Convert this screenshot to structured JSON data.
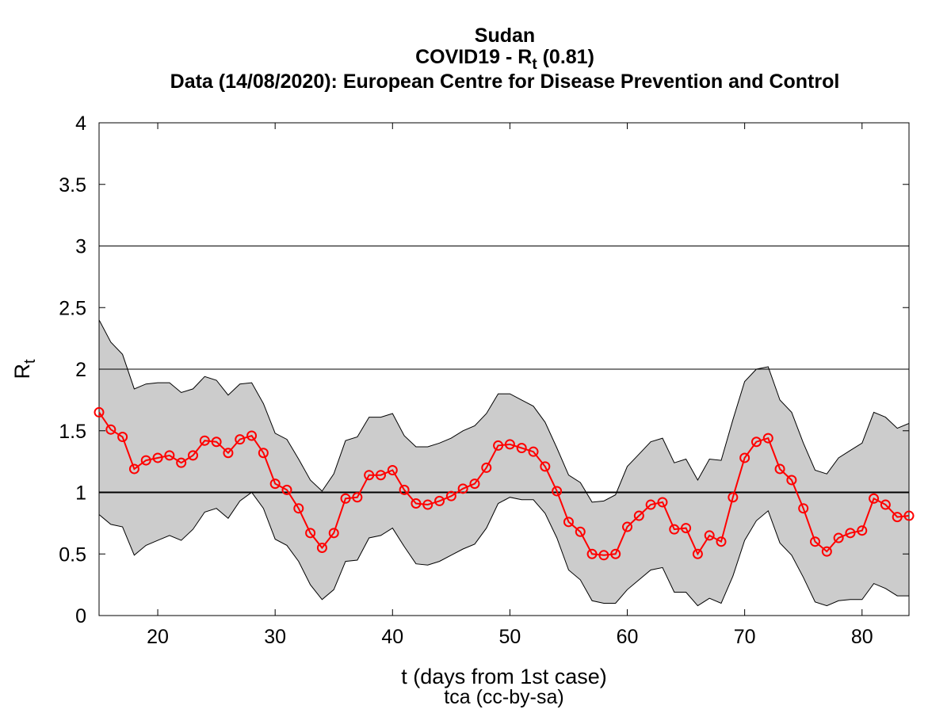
{
  "chart_data": {
    "type": "line",
    "title_country": "Sudan",
    "title_main_prefix": "COVID19 - R",
    "title_main_sub": "t",
    "title_main_suffix": " (0.81)",
    "title_source": "Data (14/08/2020): European Centre for Disease Prevention and Control",
    "xlabel": "t (days from 1st case)",
    "ylabel_main": "R",
    "ylabel_sub": "t",
    "credit": "tca (cc-by-sa)",
    "xlim": [
      15,
      84
    ],
    "ylim": [
      0,
      4
    ],
    "x_ticks": [
      20,
      30,
      40,
      50,
      60,
      70,
      80
    ],
    "y_ticks": [
      0,
      0.5,
      1,
      1.5,
      2,
      2.5,
      3,
      3.5,
      4
    ],
    "y_tick_labels": [
      "0",
      "0.5",
      "1",
      "1.5",
      "2",
      "2.5",
      "3",
      "3.5",
      "4"
    ],
    "reference_lines": [
      1,
      2,
      3
    ],
    "colors": {
      "line": "#ff0000",
      "band": "#cccccc",
      "band_edge": "#000000"
    },
    "series": [
      {
        "x": [
          15,
          16,
          17,
          18,
          19,
          20,
          21,
          22,
          23,
          24,
          25,
          26,
          27,
          28,
          29,
          30,
          31,
          32,
          33,
          34,
          35,
          36,
          37,
          38,
          39,
          40,
          41,
          42,
          43,
          44,
          45,
          46,
          47,
          48,
          49,
          50,
          51,
          52,
          53,
          54,
          55,
          56,
          57,
          58,
          59,
          60,
          61,
          62,
          63,
          64,
          65,
          66,
          67,
          68,
          69,
          70,
          71,
          72,
          73,
          74,
          75,
          76,
          77,
          78,
          79,
          80,
          81,
          82,
          83,
          84
        ],
        "values": [
          1.65,
          1.51,
          1.45,
          1.19,
          1.26,
          1.28,
          1.3,
          1.24,
          1.3,
          1.42,
          1.41,
          1.32,
          1.43,
          1.46,
          1.32,
          1.07,
          1.02,
          0.87,
          0.67,
          0.55,
          0.67,
          0.95,
          0.96,
          1.14,
          1.14,
          1.18,
          1.02,
          0.91,
          0.9,
          0.93,
          0.97,
          1.03,
          1.07,
          1.2,
          1.38,
          1.39,
          1.36,
          1.33,
          1.21,
          1.01,
          0.76,
          0.68,
          0.5,
          0.49,
          0.5,
          0.72,
          0.81,
          0.9,
          0.92,
          0.7,
          0.71,
          0.5,
          0.65,
          0.6,
          0.96,
          1.28,
          1.41,
          1.44,
          1.19,
          1.1,
          0.87,
          0.6,
          0.52,
          0.63,
          0.67,
          0.69,
          0.95,
          0.9,
          0.8,
          0.81
        ]
      }
    ],
    "band_upper": [
      2.4,
      2.22,
      2.12,
      1.84,
      1.88,
      1.89,
      1.89,
      1.81,
      1.84,
      1.94,
      1.91,
      1.79,
      1.88,
      1.89,
      1.72,
      1.48,
      1.43,
      1.27,
      1.1,
      1.01,
      1.15,
      1.42,
      1.45,
      1.61,
      1.61,
      1.64,
      1.46,
      1.37,
      1.37,
      1.4,
      1.44,
      1.5,
      1.54,
      1.64,
      1.8,
      1.8,
      1.75,
      1.7,
      1.57,
      1.36,
      1.14,
      1.08,
      0.92,
      0.93,
      0.98,
      1.21,
      1.31,
      1.41,
      1.44,
      1.24,
      1.27,
      1.1,
      1.27,
      1.26,
      1.59,
      1.9,
      2.0,
      2.02,
      1.75,
      1.65,
      1.4,
      1.18,
      1.15,
      1.28,
      1.34,
      1.4,
      1.65,
      1.61,
      1.52,
      1.56
    ],
    "band_lower": [
      0.82,
      0.74,
      0.72,
      0.49,
      0.57,
      0.61,
      0.65,
      0.61,
      0.7,
      0.84,
      0.87,
      0.79,
      0.93,
      1.0,
      0.87,
      0.62,
      0.57,
      0.44,
      0.25,
      0.13,
      0.21,
      0.44,
      0.45,
      0.63,
      0.65,
      0.71,
      0.56,
      0.42,
      0.41,
      0.44,
      0.49,
      0.54,
      0.58,
      0.71,
      0.91,
      0.96,
      0.94,
      0.94,
      0.83,
      0.63,
      0.37,
      0.29,
      0.12,
      0.1,
      0.1,
      0.21,
      0.29,
      0.37,
      0.39,
      0.19,
      0.19,
      0.08,
      0.14,
      0.1,
      0.32,
      0.61,
      0.77,
      0.85,
      0.59,
      0.49,
      0.31,
      0.11,
      0.08,
      0.12,
      0.13,
      0.13,
      0.26,
      0.22,
      0.16,
      0.16
    ]
  }
}
